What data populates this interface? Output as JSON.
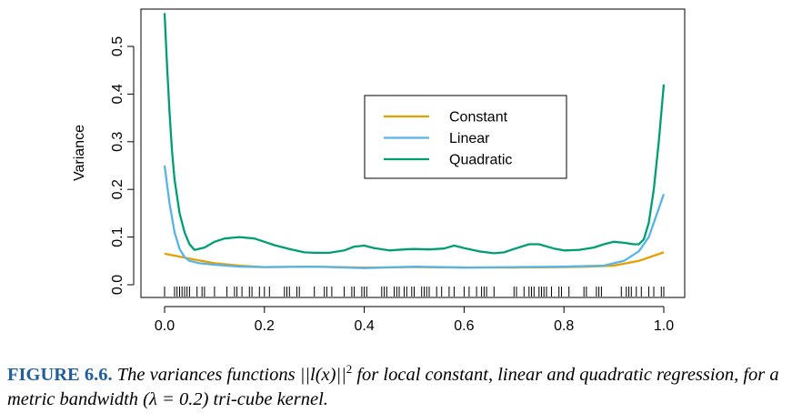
{
  "chart_data": {
    "type": "line",
    "ylabel": "Variance",
    "xlabel": "",
    "xlim": [
      0,
      1
    ],
    "ylim": [
      0,
      0.56
    ],
    "xticks": [
      "0.0",
      "0.2",
      "0.4",
      "0.6",
      "0.8",
      "1.0"
    ],
    "yticks": [
      "0.0",
      "0.1",
      "0.2",
      "0.3",
      "0.4",
      "0.5"
    ],
    "legend_position": "center-right",
    "series": [
      {
        "name": "Constant",
        "color": "#E69F00",
        "x": [
          0.0,
          0.05,
          0.1,
          0.15,
          0.2,
          0.3,
          0.4,
          0.5,
          0.6,
          0.7,
          0.8,
          0.85,
          0.9,
          0.95,
          1.0
        ],
        "y": [
          0.065,
          0.055,
          0.045,
          0.04,
          0.037,
          0.038,
          0.036,
          0.037,
          0.036,
          0.036,
          0.037,
          0.038,
          0.04,
          0.05,
          0.068
        ]
      },
      {
        "name": "Linear",
        "color": "#56B4E9",
        "x": [
          0.0,
          0.01,
          0.02,
          0.03,
          0.04,
          0.05,
          0.07,
          0.1,
          0.15,
          0.2,
          0.3,
          0.4,
          0.5,
          0.6,
          0.7,
          0.8,
          0.88,
          0.92,
          0.95,
          0.97,
          0.98,
          0.99,
          1.0
        ],
        "y": [
          0.25,
          0.17,
          0.11,
          0.075,
          0.058,
          0.05,
          0.045,
          0.042,
          0.038,
          0.037,
          0.038,
          0.035,
          0.038,
          0.036,
          0.037,
          0.038,
          0.04,
          0.05,
          0.07,
          0.1,
          0.13,
          0.16,
          0.19
        ]
      },
      {
        "name": "Quadratic",
        "color": "#009E73",
        "x": [
          0.0,
          0.005,
          0.01,
          0.015,
          0.02,
          0.03,
          0.04,
          0.05,
          0.06,
          0.08,
          0.1,
          0.12,
          0.15,
          0.18,
          0.2,
          0.22,
          0.25,
          0.28,
          0.3,
          0.33,
          0.36,
          0.38,
          0.4,
          0.42,
          0.45,
          0.48,
          0.5,
          0.53,
          0.56,
          0.58,
          0.6,
          0.63,
          0.66,
          0.68,
          0.7,
          0.73,
          0.75,
          0.78,
          0.8,
          0.83,
          0.86,
          0.88,
          0.9,
          0.92,
          0.94,
          0.95,
          0.96,
          0.97,
          0.98,
          0.99,
          1.0
        ],
        "y": [
          0.57,
          0.46,
          0.36,
          0.28,
          0.22,
          0.15,
          0.11,
          0.085,
          0.073,
          0.078,
          0.09,
          0.097,
          0.1,
          0.097,
          0.09,
          0.083,
          0.075,
          0.068,
          0.067,
          0.067,
          0.072,
          0.08,
          0.082,
          0.077,
          0.072,
          0.074,
          0.075,
          0.074,
          0.076,
          0.082,
          0.077,
          0.07,
          0.066,
          0.068,
          0.075,
          0.085,
          0.085,
          0.076,
          0.072,
          0.073,
          0.078,
          0.085,
          0.09,
          0.088,
          0.085,
          0.085,
          0.095,
          0.13,
          0.2,
          0.3,
          0.42
        ]
      }
    ],
    "rug_x": [
      0.0,
      0.02,
      0.025,
      0.03,
      0.035,
      0.04,
      0.045,
      0.05,
      0.065,
      0.075,
      0.08,
      0.1,
      0.125,
      0.14,
      0.145,
      0.155,
      0.17,
      0.175,
      0.19,
      0.2,
      0.21,
      0.24,
      0.245,
      0.25,
      0.265,
      0.27,
      0.3,
      0.32,
      0.325,
      0.335,
      0.36,
      0.375,
      0.38,
      0.395,
      0.4,
      0.405,
      0.435,
      0.44,
      0.445,
      0.46,
      0.465,
      0.47,
      0.48,
      0.485,
      0.495,
      0.5,
      0.515,
      0.52,
      0.525,
      0.53,
      0.545,
      0.555,
      0.57,
      0.58,
      0.6,
      0.61,
      0.625,
      0.635,
      0.64,
      0.645,
      0.66,
      0.7,
      0.705,
      0.72,
      0.73,
      0.735,
      0.74,
      0.75,
      0.755,
      0.76,
      0.765,
      0.775,
      0.79,
      0.795,
      0.81,
      0.84,
      0.845,
      0.865,
      0.87,
      0.875,
      0.915,
      0.925,
      0.93,
      0.935,
      0.945,
      0.955,
      0.97,
      0.98,
      0.995,
      1.0
    ]
  },
  "caption": {
    "label": "FIGURE 6.6.",
    "text_before": " The variances functions ",
    "norm_expr": "||l(x)||",
    "norm_exp": "2",
    "text_after": " for local constant, linear and quadratic regression, for a metric bandwidth (λ = 0.2) tri-cube kernel."
  }
}
